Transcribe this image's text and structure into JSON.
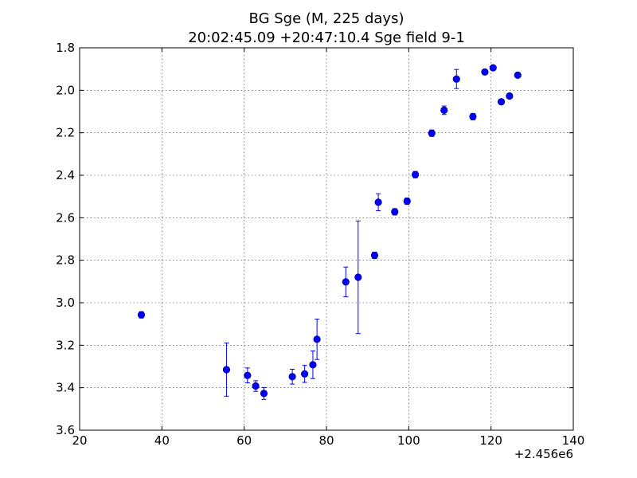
{
  "chart_data": {
    "type": "scatter",
    "title": "BG Sge (M, 225 days)",
    "subtitle": "20:02:45.09 +20:47:10.4 Sge field 9-1",
    "xlabel": "",
    "ylabel": "",
    "x_offset_label": "+2.456e6",
    "xlim": [
      20,
      140
    ],
    "ylim": [
      3.6,
      1.8
    ],
    "y_inverted": true,
    "grid": true,
    "x_ticks": [
      "20",
      "40",
      "60",
      "80",
      "100",
      "120",
      "140"
    ],
    "y_ticks": [
      "1.8",
      "2.0",
      "2.2",
      "2.4",
      "2.6",
      "2.8",
      "3.0",
      "3.2",
      "3.4",
      "3.6"
    ],
    "x_tick_values": [
      20,
      40,
      60,
      80,
      100,
      120,
      140
    ],
    "y_tick_values": [
      1.8,
      2.0,
      2.2,
      2.4,
      2.6,
      2.8,
      3.0,
      3.2,
      3.4,
      3.6
    ],
    "marker_color": "#0000ff",
    "points": [
      {
        "x": 35.0,
        "y": 3.057,
        "err": 0.015
      },
      {
        "x": 55.7,
        "y": 3.315,
        "err": 0.125
      },
      {
        "x": 60.8,
        "y": 3.342,
        "err": 0.035
      },
      {
        "x": 62.8,
        "y": 3.392,
        "err": 0.025
      },
      {
        "x": 64.8,
        "y": 3.427,
        "err": 0.028
      },
      {
        "x": 71.7,
        "y": 3.348,
        "err": 0.035
      },
      {
        "x": 74.7,
        "y": 3.335,
        "err": 0.04
      },
      {
        "x": 76.7,
        "y": 3.292,
        "err": 0.065
      },
      {
        "x": 77.7,
        "y": 3.172,
        "err": 0.095
      },
      {
        "x": 84.7,
        "y": 2.902,
        "err": 0.07
      },
      {
        "x": 87.7,
        "y": 2.88,
        "err": 0.265
      },
      {
        "x": 91.7,
        "y": 2.777,
        "err": 0.015
      },
      {
        "x": 92.6,
        "y": 2.527,
        "err": 0.04
      },
      {
        "x": 96.6,
        "y": 2.572,
        "err": 0.015
      },
      {
        "x": 99.6,
        "y": 2.522,
        "err": 0.015
      },
      {
        "x": 101.6,
        "y": 2.397,
        "err": 0.015
      },
      {
        "x": 105.6,
        "y": 2.202,
        "err": 0.015
      },
      {
        "x": 108.6,
        "y": 2.094,
        "err": 0.02
      },
      {
        "x": 111.6,
        "y": 1.947,
        "err": 0.045
      },
      {
        "x": 115.6,
        "y": 2.124,
        "err": 0.015
      },
      {
        "x": 118.5,
        "y": 1.914,
        "err": 0.01
      },
      {
        "x": 120.5,
        "y": 1.894,
        "err": 0.01
      },
      {
        "x": 122.5,
        "y": 2.054,
        "err": 0.01
      },
      {
        "x": 124.5,
        "y": 2.027,
        "err": 0.01
      },
      {
        "x": 126.5,
        "y": 1.929,
        "err": 0.01
      }
    ]
  }
}
